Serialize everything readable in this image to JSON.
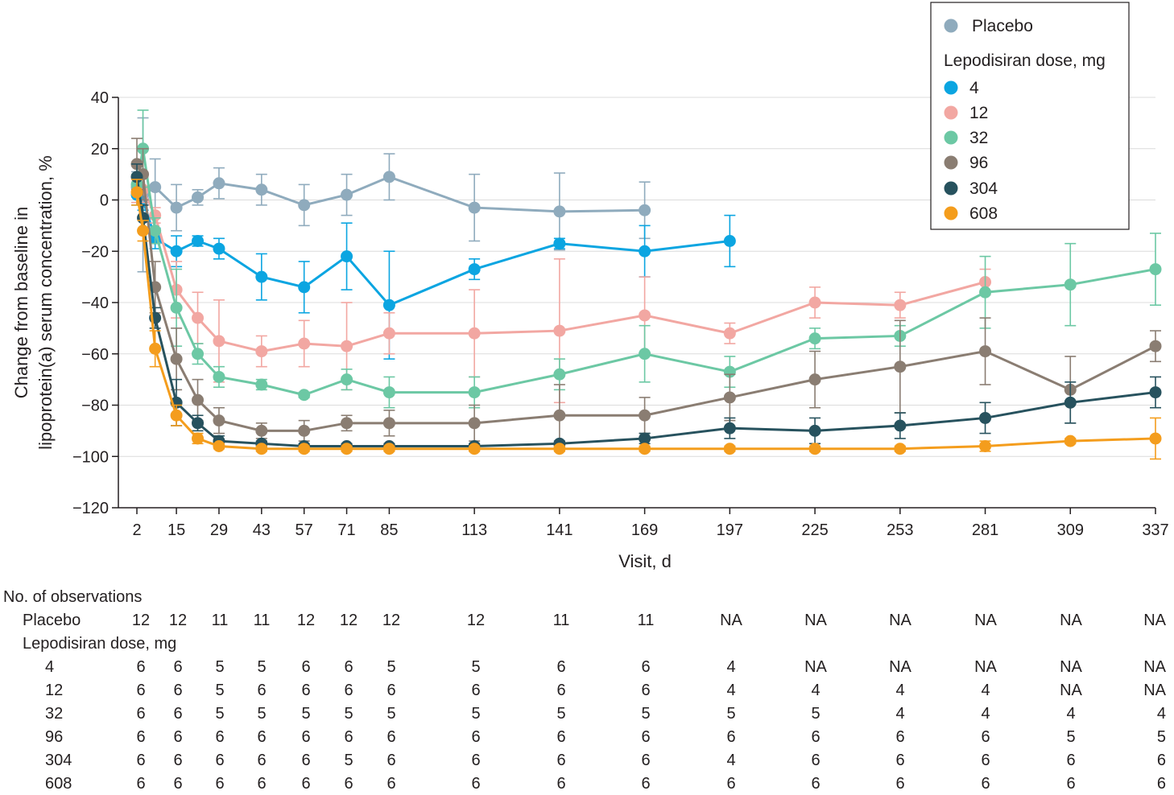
{
  "chart_data": {
    "type": "line",
    "ylabel_line1": "Change from baseline in",
    "ylabel_line2": "lipoprotein(a) serum concentration, %",
    "xlabel": "Visit, d",
    "ylim": [
      -120,
      40
    ],
    "xlim": [
      0,
      337
    ],
    "yticks": [
      40,
      20,
      0,
      -20,
      -40,
      -60,
      -80,
      -100,
      -120
    ],
    "xticks": [
      2,
      15,
      29,
      43,
      57,
      71,
      85,
      113,
      141,
      169,
      197,
      225,
      253,
      281,
      309,
      337
    ],
    "grid": "horizontal",
    "legend": {
      "position": "top-right",
      "placebo_label": "Placebo",
      "dose_header": "Lepodisiran dose, mg"
    },
    "series": [
      {
        "name": "Placebo",
        "color": "#8fabbd",
        "x": [
          2,
          4,
          8,
          15,
          22,
          29,
          43,
          57,
          71,
          85,
          113,
          141,
          169
        ],
        "y": [
          5,
          2,
          5,
          -3,
          1,
          6.5,
          4,
          -2,
          2,
          9,
          -3,
          -4.5,
          -4
        ],
        "err": [
          6,
          30,
          11,
          9,
          3,
          6,
          6,
          8,
          8,
          9,
          13,
          15,
          11
        ]
      },
      {
        "name": "4",
        "color": "#0ba5e1",
        "x": [
          2,
          4,
          8,
          15,
          22,
          29,
          43,
          57,
          71,
          85,
          113,
          141,
          169,
          197
        ],
        "y": [
          2,
          0,
          -15,
          -20,
          -16,
          -19,
          -30,
          -34,
          -22,
          -41,
          -27,
          -17,
          -20,
          -16
        ],
        "err": [
          4,
          4,
          4,
          6,
          2,
          4,
          9,
          10,
          13,
          21,
          4,
          2,
          10,
          10
        ]
      },
      {
        "name": "12",
        "color": "#f2a7a2",
        "x": [
          2,
          4,
          8,
          15,
          22,
          29,
          43,
          57,
          71,
          85,
          113,
          141,
          169,
          197,
          225,
          253,
          281
        ],
        "y": [
          3,
          4,
          -6,
          -35,
          -46,
          -55,
          -59,
          -56,
          -57,
          -52,
          -52,
          -51,
          -45,
          -52,
          -40,
          -41,
          -32
        ],
        "err": [
          4,
          5,
          3,
          11,
          10,
          16,
          6,
          9,
          17,
          8,
          17,
          28,
          15,
          4,
          6,
          5,
          5
        ]
      },
      {
        "name": "32",
        "color": "#6cc8a4",
        "x": [
          2,
          4,
          8,
          15,
          22,
          29,
          43,
          57,
          71,
          85,
          113,
          141,
          169,
          197,
          225,
          253,
          281,
          309,
          337
        ],
        "y": [
          6,
          20,
          -12,
          -42,
          -60,
          -69,
          -72,
          -76,
          -70,
          -75,
          -75,
          -68,
          -60,
          -67,
          -54,
          -53,
          -36,
          -33,
          -27
        ],
        "err": [
          4,
          15,
          5,
          15,
          4,
          4,
          2,
          1,
          4,
          6,
          6,
          6,
          11,
          6,
          4,
          4,
          14,
          16,
          14
        ]
      },
      {
        "name": "96",
        "color": "#8a7d72",
        "x": [
          2,
          4,
          8,
          15,
          22,
          29,
          43,
          57,
          71,
          85,
          113,
          141,
          169,
          197,
          225,
          253,
          281,
          309,
          337
        ],
        "y": [
          14,
          10,
          -34,
          -62,
          -78,
          -86,
          -90,
          -90,
          -87,
          -87,
          -87,
          -84,
          -84,
          -77,
          -70,
          -65,
          -59,
          -74,
          -57
        ],
        "err": [
          10,
          10,
          10,
          12,
          8,
          5,
          3,
          4,
          3,
          5,
          7,
          12,
          7,
          9,
          11,
          18,
          13,
          13,
          6
        ]
      },
      {
        "name": "304",
        "color": "#27525e",
        "x": [
          2,
          4,
          8,
          15,
          22,
          29,
          43,
          57,
          71,
          85,
          113,
          141,
          169,
          197,
          225,
          253,
          281,
          309,
          337
        ],
        "y": [
          9,
          -7,
          -46,
          -79,
          -87,
          -94,
          -95,
          -96,
          -96,
          -96,
          -96,
          -95,
          -93,
          -89,
          -90,
          -88,
          -85,
          -79,
          -75
        ],
        "err": [
          5,
          5,
          4,
          9,
          3,
          2,
          1,
          1,
          1,
          1,
          1,
          1,
          2,
          4,
          5,
          5,
          6,
          8,
          6
        ]
      },
      {
        "name": "608",
        "color": "#f49d1d",
        "x": [
          2,
          4,
          8,
          15,
          22,
          29,
          43,
          57,
          71,
          85,
          113,
          141,
          169,
          197,
          225,
          253,
          281,
          309,
          337
        ],
        "y": [
          3,
          -12,
          -58,
          -84,
          -93,
          -96,
          -97,
          -97,
          -97,
          -97,
          -97,
          -97,
          -97,
          -97,
          -97,
          -97,
          -96,
          -94,
          -93
        ],
        "err": [
          5,
          4,
          7,
          4,
          2,
          1,
          1,
          1,
          1,
          1,
          1,
          1,
          1,
          1,
          1,
          1,
          2,
          1,
          8
        ]
      }
    ]
  },
  "observations": {
    "header": "No. of observations",
    "dose_header": "Lepodisiran dose, mg",
    "rows": [
      {
        "label": "Placebo",
        "values": [
          "12",
          "12",
          "11",
          "11",
          "12",
          "12",
          "12",
          "12",
          "11",
          "11",
          "NA",
          "NA",
          "NA",
          "NA",
          "NA",
          "NA"
        ]
      },
      {
        "label": "4",
        "values": [
          "6",
          "6",
          "5",
          "5",
          "6",
          "6",
          "5",
          "5",
          "6",
          "6",
          "4",
          "NA",
          "NA",
          "NA",
          "NA",
          "NA"
        ]
      },
      {
        "label": "12",
        "values": [
          "6",
          "6",
          "5",
          "6",
          "6",
          "6",
          "6",
          "6",
          "6",
          "6",
          "4",
          "4",
          "4",
          "4",
          "NA",
          "NA"
        ]
      },
      {
        "label": "32",
        "values": [
          "6",
          "6",
          "5",
          "5",
          "5",
          "5",
          "5",
          "5",
          "5",
          "5",
          "5",
          "5",
          "4",
          "4",
          "4",
          "4"
        ]
      },
      {
        "label": "96",
        "values": [
          "6",
          "6",
          "6",
          "6",
          "6",
          "6",
          "6",
          "6",
          "6",
          "6",
          "6",
          "6",
          "6",
          "6",
          "5",
          "5"
        ]
      },
      {
        "label": "304",
        "values": [
          "6",
          "6",
          "6",
          "6",
          "6",
          "5",
          "6",
          "6",
          "6",
          "6",
          "4",
          "6",
          "6",
          "6",
          "6",
          "6"
        ]
      },
      {
        "label": "608",
        "values": [
          "6",
          "6",
          "6",
          "6",
          "6",
          "6",
          "6",
          "6",
          "6",
          "6",
          "6",
          "6",
          "6",
          "6",
          "6",
          "6"
        ]
      }
    ]
  }
}
